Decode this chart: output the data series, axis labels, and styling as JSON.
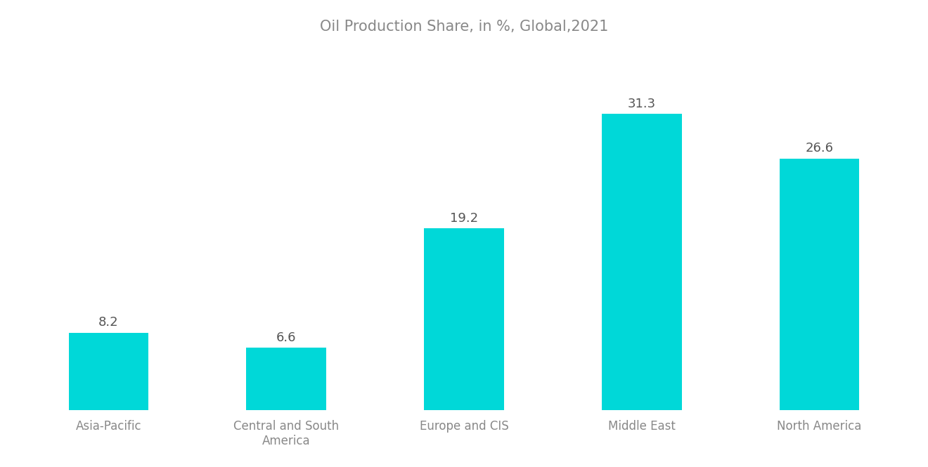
{
  "title": "Oil Production Share, in %, Global,2021",
  "categories": [
    "Asia-Pacific",
    "Central and South\nAmerica",
    "Europe and CIS",
    "Middle East",
    "North America"
  ],
  "values": [
    8.2,
    6.6,
    19.2,
    31.3,
    26.6
  ],
  "bar_color": "#00D8D8",
  "title_color": "#888888",
  "label_color": "#888888",
  "value_color": "#555555",
  "background_color": "#FFFFFF",
  "bar_width": 0.45,
  "ylim": [
    0,
    38
  ],
  "title_fontsize": 15,
  "label_fontsize": 12,
  "value_fontsize": 13
}
